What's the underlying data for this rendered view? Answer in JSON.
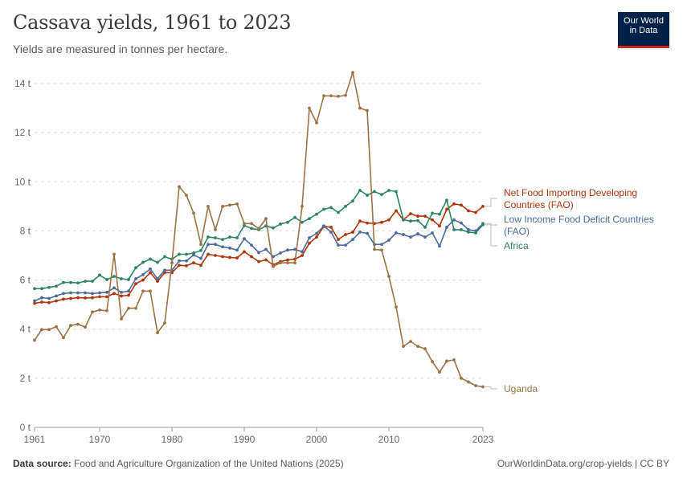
{
  "header": {
    "title": "Cassava yields, 1961 to 2023",
    "subtitle": "Yields are measured in tonnes per hectare."
  },
  "logo": {
    "line1": "Our World",
    "line2": "in Data"
  },
  "footer": {
    "source_label": "Data source:",
    "source_text": "Food and Agriculture Organization of the United Nations (2025)",
    "url": "OurWorldinData.org/crop-yields | CC BY"
  },
  "chart_data": {
    "type": "line",
    "title": "Cassava yields, 1961 to 2023",
    "subtitle": "Yields are measured in tonnes per hectare.",
    "xlabel": "",
    "ylabel": "",
    "xlim": [
      1961,
      2023
    ],
    "ylim": [
      0,
      14
    ],
    "x_ticks": [
      1961,
      1970,
      1980,
      1990,
      2000,
      2010,
      2023
    ],
    "y_ticks": [
      0,
      2,
      4,
      6,
      8,
      10,
      12,
      14
    ],
    "y_tick_labels": [
      "0 t",
      "2 t",
      "4 t",
      "6 t",
      "8 t",
      "10 t",
      "12 t",
      "14 t"
    ],
    "grid": "horizontal dashed",
    "legend": "line-end labels on right",
    "x": [
      1961,
      1962,
      1963,
      1964,
      1965,
      1966,
      1967,
      1968,
      1969,
      1970,
      1971,
      1972,
      1973,
      1974,
      1975,
      1976,
      1977,
      1978,
      1979,
      1980,
      1981,
      1982,
      1983,
      1984,
      1985,
      1986,
      1987,
      1988,
      1989,
      1990,
      1991,
      1992,
      1993,
      1994,
      1995,
      1996,
      1997,
      1998,
      1999,
      2000,
      2001,
      2002,
      2003,
      2004,
      2005,
      2006,
      2007,
      2008,
      2009,
      2010,
      2011,
      2012,
      2013,
      2014,
      2015,
      2016,
      2017,
      2018,
      2019,
      2020,
      2021,
      2022,
      2023
    ],
    "series": [
      {
        "name": "Net Food Importing Developing Countries (FAO)",
        "color": "#b13507",
        "values": [
          5.05,
          5.1,
          5.08,
          5.15,
          5.22,
          5.25,
          5.28,
          5.27,
          5.28,
          5.32,
          5.32,
          5.45,
          5.35,
          5.38,
          5.85,
          6.0,
          6.3,
          5.95,
          6.3,
          6.3,
          6.6,
          6.58,
          6.7,
          6.6,
          7.05,
          7.0,
          6.95,
          6.92,
          6.9,
          7.15,
          6.95,
          6.75,
          6.82,
          6.62,
          6.75,
          6.82,
          6.85,
          7.0,
          7.5,
          7.75,
          8.18,
          8.15,
          7.65,
          7.85,
          7.95,
          8.4,
          8.32,
          8.3,
          8.35,
          8.45,
          8.82,
          8.45,
          8.7,
          8.6,
          8.6,
          8.45,
          8.2,
          8.88,
          9.1,
          9.05,
          8.82,
          8.75,
          9.0
        ]
      },
      {
        "name": "Low Income Food Deficit Countries (FAO)",
        "color": "#4c6a9c",
        "values": [
          5.15,
          5.28,
          5.25,
          5.35,
          5.45,
          5.48,
          5.48,
          5.48,
          5.45,
          5.48,
          5.5,
          5.68,
          5.5,
          5.55,
          6.05,
          6.22,
          6.45,
          6.05,
          6.4,
          6.4,
          6.78,
          6.78,
          7.02,
          6.88,
          7.45,
          7.45,
          7.35,
          7.3,
          7.22,
          7.68,
          7.42,
          7.12,
          7.25,
          6.95,
          7.1,
          7.22,
          7.25,
          7.15,
          7.72,
          7.9,
          8.2,
          7.95,
          7.42,
          7.42,
          7.65,
          7.95,
          7.9,
          7.45,
          7.45,
          7.62,
          7.92,
          7.85,
          7.75,
          7.88,
          7.75,
          7.92,
          7.38,
          8.15,
          8.45,
          8.32,
          8.05,
          8.0,
          8.3
        ]
      },
      {
        "name": "Africa",
        "color": "#2c8465",
        "values": [
          5.65,
          5.65,
          5.7,
          5.75,
          5.9,
          5.9,
          5.88,
          5.95,
          5.95,
          6.2,
          6.02,
          6.15,
          6.05,
          6.02,
          6.5,
          6.72,
          6.85,
          6.72,
          6.95,
          6.85,
          7.05,
          7.05,
          7.1,
          7.2,
          7.75,
          7.72,
          7.65,
          7.75,
          7.72,
          8.22,
          8.1,
          8.05,
          8.2,
          8.12,
          8.28,
          8.35,
          8.55,
          8.35,
          8.5,
          8.68,
          8.88,
          8.95,
          8.75,
          9.0,
          9.22,
          9.65,
          9.45,
          9.6,
          9.48,
          9.65,
          9.6,
          8.45,
          8.4,
          8.42,
          8.15,
          8.72,
          8.68,
          9.25,
          8.05,
          8.05,
          7.95,
          7.92,
          8.25
        ]
      },
      {
        "name": "Uganda",
        "color": "#9a7445",
        "values": [
          3.55,
          3.98,
          3.98,
          4.1,
          3.65,
          4.15,
          4.2,
          4.08,
          4.7,
          4.78,
          4.75,
          7.05,
          4.42,
          4.85,
          4.85,
          5.55,
          5.55,
          3.85,
          4.25,
          6.7,
          9.8,
          9.45,
          8.72,
          7.45,
          9.0,
          8.05,
          9.0,
          9.05,
          9.1,
          8.3,
          8.3,
          8.1,
          8.5,
          6.55,
          6.7,
          6.7,
          6.7,
          9.0,
          13.0,
          12.4,
          13.5,
          13.5,
          13.48,
          13.52,
          14.45,
          13.0,
          12.9,
          7.25,
          7.22,
          6.15,
          4.9,
          3.3,
          3.5,
          3.3,
          3.2,
          2.68,
          2.25,
          2.7,
          2.75,
          2.0,
          1.85,
          1.7,
          1.65
        ]
      }
    ]
  }
}
